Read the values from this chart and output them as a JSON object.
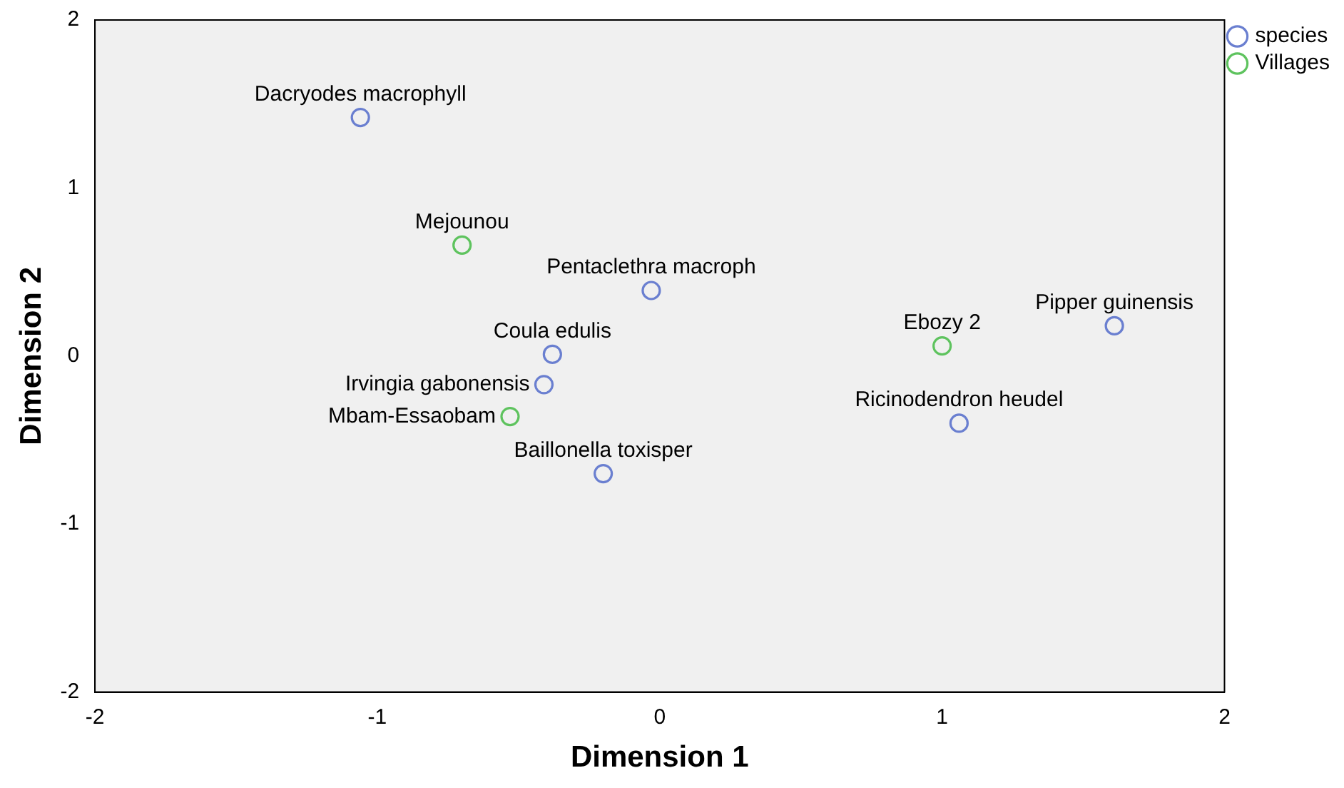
{
  "chart_data": {
    "type": "scatter",
    "xlabel": "Dimension 1",
    "ylabel": "Dimension 2",
    "series": [
      {
        "name": "species",
        "color": "#6a7fd0",
        "x": [
          -1.06,
          -0.03,
          1.61,
          -0.38,
          -0.41,
          1.06,
          -0.2
        ],
        "values": [
          1.42,
          0.39,
          0.18,
          0.01,
          -0.17,
          -0.4,
          -0.7
        ]
      },
      {
        "name": "Villages",
        "color": "#5ec35e",
        "x": [
          -0.7,
          1.0,
          -0.53
        ],
        "values": [
          0.66,
          0.06,
          -0.36
        ]
      }
    ],
    "annotations": [
      {
        "text": "Dacryodes macrophyll",
        "x": -1.06,
        "y": 1.42
      },
      {
        "text": "Pentaclethra macroph",
        "x": -0.03,
        "y": 0.39
      },
      {
        "text": "Pipper guinensis",
        "x": 1.61,
        "y": 0.18
      },
      {
        "text": "Coula edulis",
        "x": -0.38,
        "y": 0.01
      },
      {
        "text": "Irvingia gabonensis",
        "x": -0.41,
        "y": -0.17
      },
      {
        "text": "Ricinodendron heudel",
        "x": 1.06,
        "y": -0.4
      },
      {
        "text": "Baillonella toxisper",
        "x": -0.2,
        "y": -0.7
      },
      {
        "text": "Mejounou",
        "x": -0.7,
        "y": 0.66
      },
      {
        "text": "Ebozy 2",
        "x": 1.0,
        "y": 0.06
      },
      {
        "text": "Mbam-Essaobam",
        "x": -0.53,
        "y": -0.36
      }
    ],
    "xlim": [
      -2,
      2
    ],
    "xticks": [
      -2,
      -1,
      0,
      1,
      2
    ],
    "ylim": [
      -2,
      2
    ],
    "yticks": [
      -2,
      -1,
      0,
      1,
      2
    ],
    "marker": "circle",
    "legend": "top right",
    "grid": false
  }
}
